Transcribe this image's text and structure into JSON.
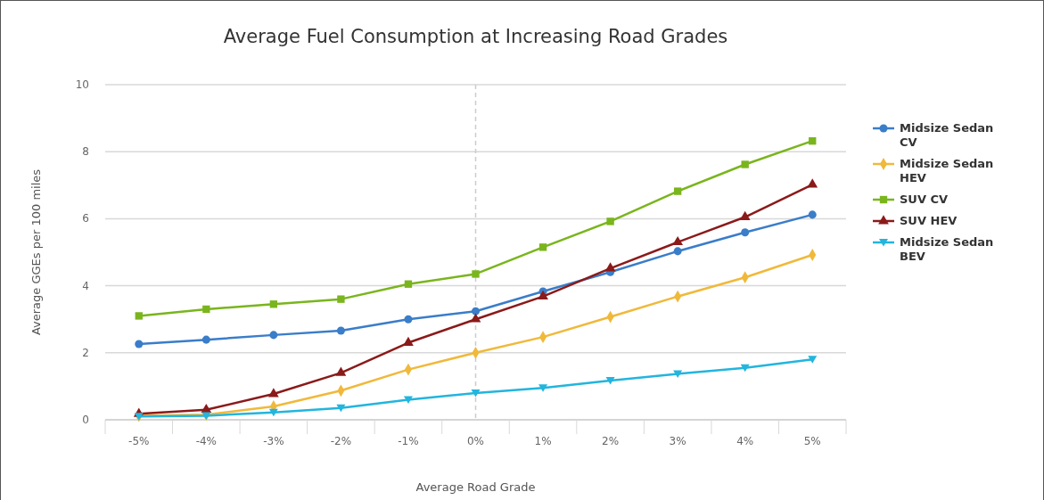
{
  "chart_data": {
    "type": "line",
    "title": "Average Fuel Consumption at Increasing Road Grades",
    "xlabel": "Average Road Grade",
    "ylabel": "Average GGEs per 100 miles",
    "categories": [
      "-5%",
      "-4%",
      "-3%",
      "-2%",
      "-1%",
      "0%",
      "1%",
      "2%",
      "3%",
      "4%",
      "5%"
    ],
    "series": [
      {
        "name": "Midsize Sedan CV",
        "color": "#3a7dc9",
        "marker": "circle",
        "values": [
          2.26,
          2.39,
          2.53,
          2.66,
          3.0,
          3.24,
          3.83,
          4.41,
          5.03,
          5.59,
          6.12
        ]
      },
      {
        "name": "Midsize Sedan HEV",
        "color": "#f0b93a",
        "marker": "diamond",
        "values": [
          0.12,
          0.15,
          0.4,
          0.87,
          1.5,
          2.0,
          2.47,
          3.07,
          3.68,
          4.25,
          4.92
        ]
      },
      {
        "name": "SUV CV",
        "color": "#7ab51d",
        "marker": "square",
        "values": [
          3.1,
          3.3,
          3.45,
          3.6,
          4.05,
          4.35,
          5.15,
          5.92,
          6.82,
          7.62,
          8.32
        ]
      },
      {
        "name": "SUV HEV",
        "color": "#8b1a1a",
        "marker": "triangle",
        "values": [
          0.18,
          0.3,
          0.77,
          1.4,
          2.3,
          3.0,
          3.68,
          4.52,
          5.3,
          6.05,
          7.02
        ]
      },
      {
        "name": "Midsize Sedan BEV",
        "color": "#22b5de",
        "marker": "triangle-down",
        "values": [
          0.1,
          0.12,
          0.22,
          0.35,
          0.6,
          0.8,
          0.95,
          1.17,
          1.37,
          1.55,
          1.8
        ]
      }
    ],
    "ylim": [
      0,
      10
    ],
    "yticks": [
      0,
      2,
      4,
      6,
      8,
      10
    ],
    "grid": "y",
    "legend": "right",
    "line_style": "solid",
    "ref_lines": [
      {
        "axis": "x",
        "value": "0%",
        "color": "#cccccc",
        "line_style": "dashed"
      }
    ]
  }
}
